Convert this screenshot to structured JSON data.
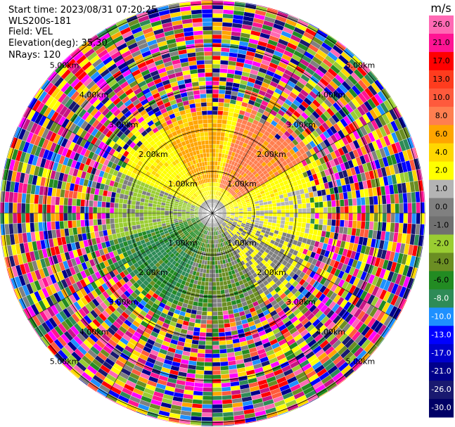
{
  "header": {
    "start_time": "Start time: 2023/08/31 07:20:25",
    "instrument": "WLS200s-181",
    "field": "Field: VEL",
    "elevation": "Elevation(deg): 35.30",
    "nrays": "NRays: 120"
  },
  "plot": {
    "range_labels": [
      "1.00km",
      "2.00km",
      "3.00km",
      "4.00km",
      "5.00km"
    ],
    "ring_count": 5,
    "colors": {
      "background": "#ffffff",
      "ring_line": "#000000",
      "nan_gray": "#bdbdbd"
    }
  },
  "colorbar": {
    "unit": "m/s",
    "ticks": [
      "26.0",
      "21.0",
      "17.0",
      "13.0",
      "10.0",
      "8.0",
      "6.0",
      "4.0",
      "2.0",
      "1.0",
      "0.0",
      "-1.0",
      "-2.0",
      "-4.0",
      "-6.0",
      "-8.0",
      "-10.0",
      "-13.0",
      "-17.0",
      "-21.0",
      "-26.0",
      "-30.0"
    ],
    "colors": [
      "#ff69b4",
      "#ff1493",
      "#ff0000",
      "#ff3c1e",
      "#ff5a3c",
      "#ff7f50",
      "#ffa500",
      "#ffd700",
      "#ffff00",
      "#b4b4b4",
      "#808080",
      "#707070",
      "#9acd32",
      "#6b8e23",
      "#228b22",
      "#2e8b57",
      "#1e90ff",
      "#0000ff",
      "#0000cd",
      "#00008b",
      "#191970",
      "#000066"
    ]
  }
}
